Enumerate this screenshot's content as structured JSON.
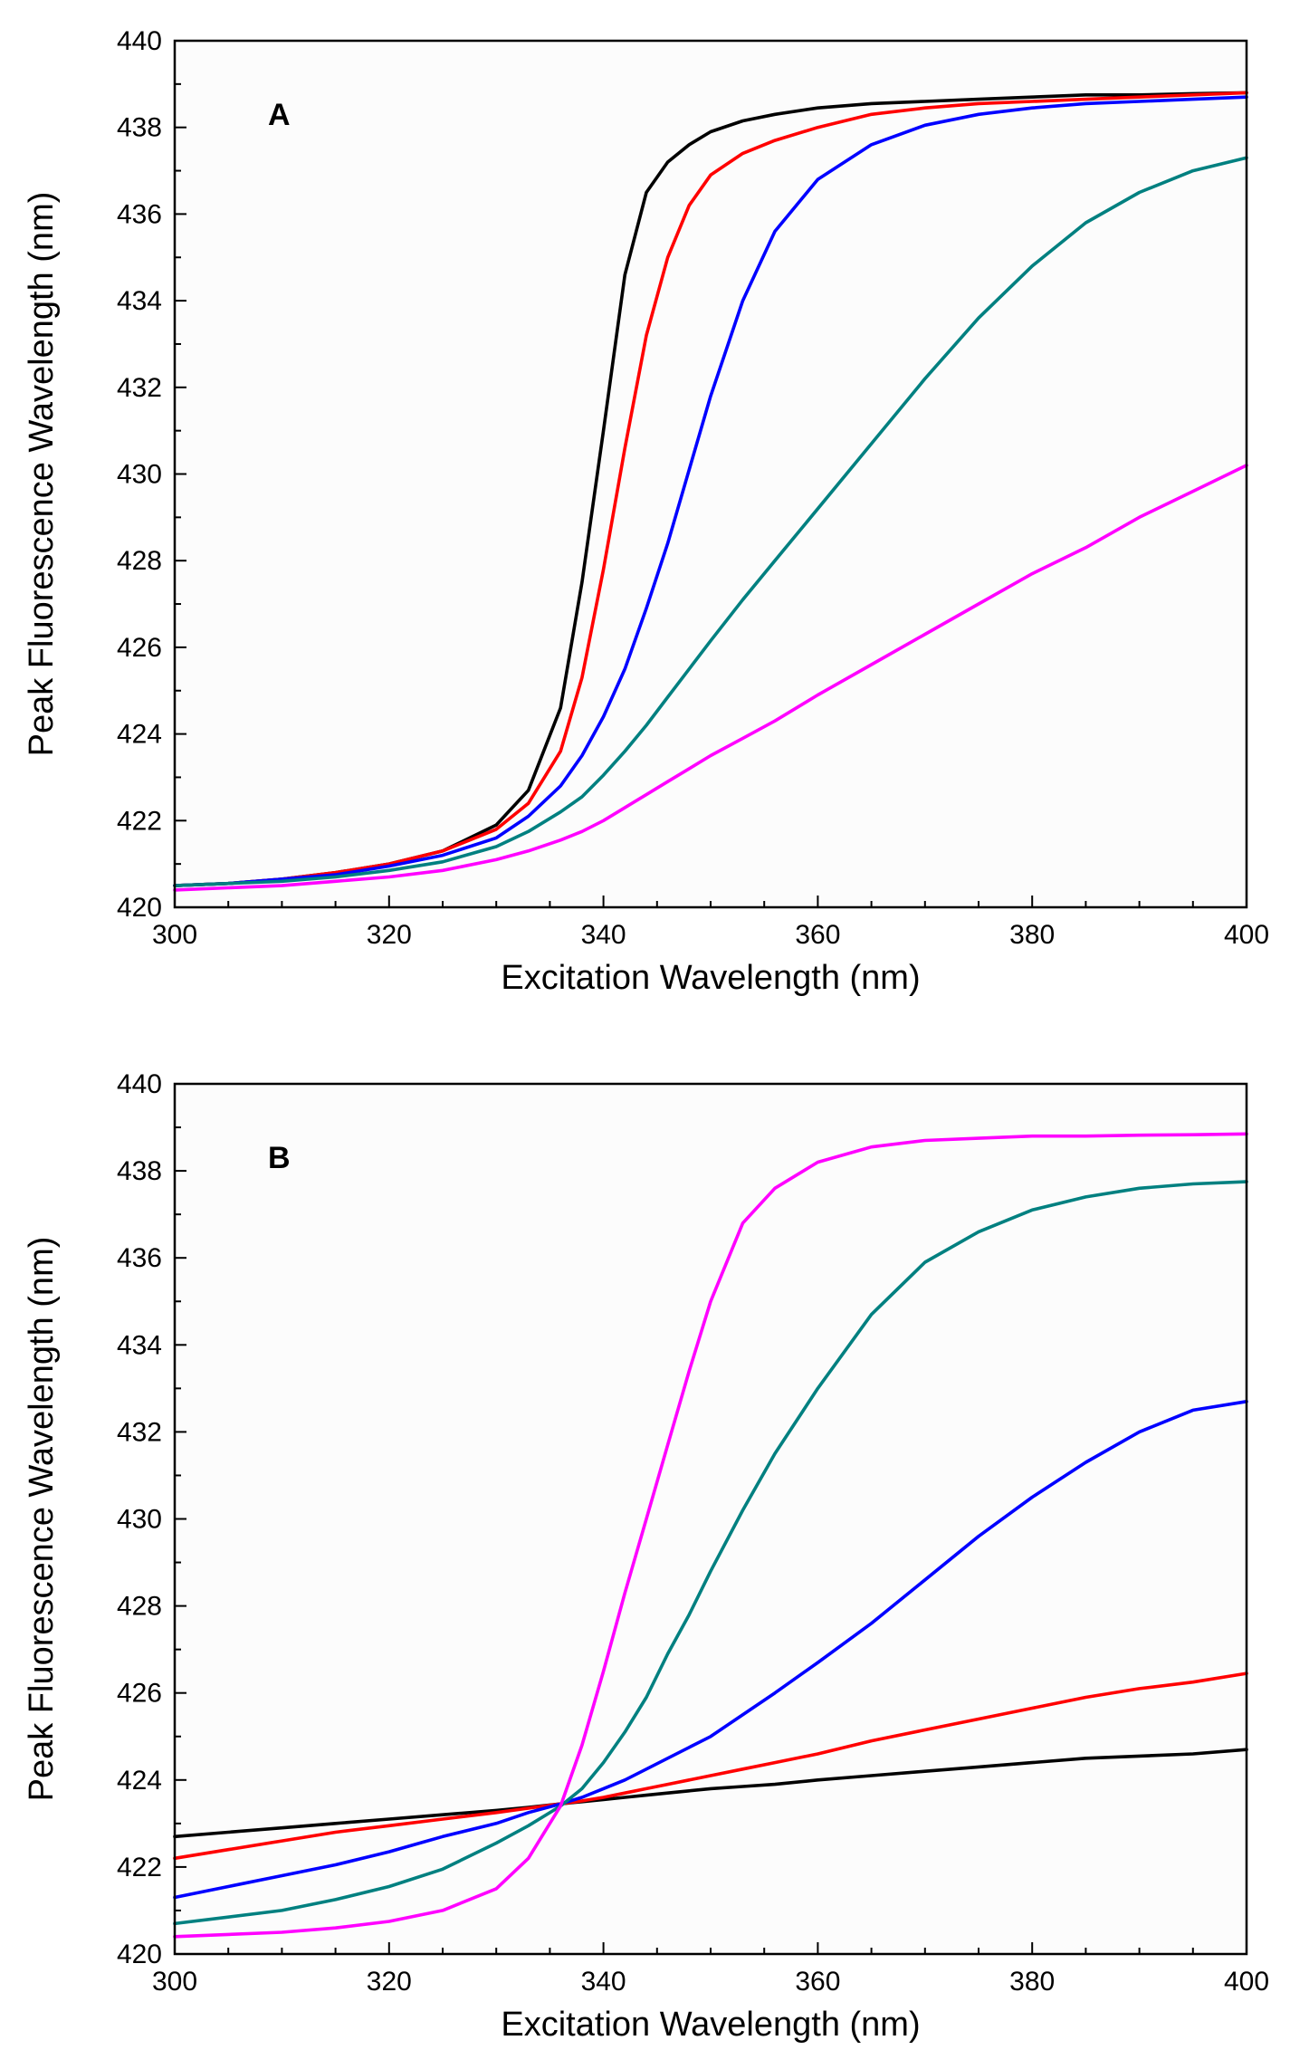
{
  "chart_data": [
    {
      "type": "line",
      "panel_label": "A",
      "xlabel": "Excitation Wavelength (nm)",
      "ylabel": "Peak Fluorescence Wavelength (nm)",
      "xlim": [
        300,
        400
      ],
      "ylim": [
        420,
        440
      ],
      "xticks": [
        300,
        320,
        340,
        360,
        380,
        400
      ],
      "yticks": [
        420,
        422,
        424,
        426,
        428,
        430,
        432,
        434,
        436,
        438,
        440
      ],
      "x": [
        300,
        305,
        310,
        315,
        320,
        325,
        330,
        333,
        336,
        338,
        340,
        342,
        344,
        346,
        348,
        350,
        353,
        356,
        360,
        365,
        370,
        375,
        380,
        385,
        390,
        395,
        400
      ],
      "series": [
        {
          "name": "black",
          "color": "#000000",
          "values": [
            420.5,
            420.55,
            420.65,
            420.8,
            421.0,
            421.3,
            421.9,
            422.7,
            424.6,
            427.5,
            431.0,
            434.6,
            436.5,
            437.2,
            437.6,
            437.9,
            438.15,
            438.3,
            438.45,
            438.55,
            438.6,
            438.65,
            438.7,
            438.75,
            438.75,
            438.78,
            438.8
          ]
        },
        {
          "name": "red",
          "color": "#ff0000",
          "values": [
            420.5,
            420.55,
            420.65,
            420.8,
            421.0,
            421.3,
            421.8,
            422.4,
            423.6,
            425.3,
            427.8,
            430.6,
            433.2,
            435.0,
            436.2,
            436.9,
            437.4,
            437.7,
            438.0,
            438.3,
            438.45,
            438.55,
            438.6,
            438.65,
            438.7,
            438.75,
            438.8
          ]
        },
        {
          "name": "blue",
          "color": "#0000ff",
          "values": [
            420.5,
            420.55,
            420.65,
            420.75,
            420.95,
            421.2,
            421.6,
            422.1,
            422.8,
            423.5,
            424.4,
            425.5,
            426.9,
            428.4,
            430.1,
            431.8,
            434.0,
            435.6,
            436.8,
            437.6,
            438.05,
            438.3,
            438.45,
            438.55,
            438.6,
            438.65,
            438.7
          ]
        },
        {
          "name": "teal",
          "color": "#008080",
          "values": [
            420.5,
            420.55,
            420.6,
            420.7,
            420.85,
            421.05,
            421.4,
            421.75,
            422.2,
            422.55,
            423.05,
            423.6,
            424.2,
            424.85,
            425.5,
            426.15,
            427.1,
            428.0,
            429.2,
            430.7,
            432.2,
            433.6,
            434.8,
            435.8,
            436.5,
            437.0,
            437.3
          ]
        },
        {
          "name": "magenta",
          "color": "#ff00ff",
          "values": [
            420.4,
            420.45,
            420.5,
            420.6,
            420.7,
            420.85,
            421.1,
            421.3,
            421.55,
            421.75,
            422.0,
            422.3,
            422.6,
            422.9,
            423.2,
            423.5,
            423.9,
            424.3,
            424.9,
            425.6,
            426.3,
            427.0,
            427.7,
            428.3,
            429.0,
            429.6,
            430.2
          ]
        }
      ]
    },
    {
      "type": "line",
      "panel_label": "B",
      "xlabel": "Excitation Wavelength (nm)",
      "ylabel": "Peak Fluorescence Wavelength (nm)",
      "xlim": [
        300,
        400
      ],
      "ylim": [
        420,
        440
      ],
      "xticks": [
        300,
        320,
        340,
        360,
        380,
        400
      ],
      "yticks": [
        420,
        422,
        424,
        426,
        428,
        430,
        432,
        434,
        436,
        438,
        440
      ],
      "x": [
        300,
        305,
        310,
        315,
        320,
        325,
        330,
        333,
        336,
        338,
        340,
        342,
        344,
        346,
        348,
        350,
        353,
        356,
        360,
        365,
        370,
        375,
        380,
        385,
        390,
        395,
        400
      ],
      "series": [
        {
          "name": "black",
          "color": "#000000",
          "values": [
            422.7,
            422.8,
            422.9,
            423.0,
            423.1,
            423.2,
            423.3,
            423.37,
            423.45,
            423.5,
            423.55,
            423.6,
            423.65,
            423.7,
            423.75,
            423.8,
            423.85,
            423.9,
            424.0,
            424.1,
            424.2,
            424.3,
            424.4,
            424.5,
            424.55,
            424.6,
            424.7
          ]
        },
        {
          "name": "red",
          "color": "#ff0000",
          "values": [
            422.2,
            422.4,
            422.6,
            422.8,
            422.95,
            423.1,
            423.25,
            423.35,
            423.45,
            423.52,
            423.6,
            423.7,
            423.8,
            423.9,
            424.0,
            424.1,
            424.25,
            424.4,
            424.6,
            424.9,
            425.15,
            425.4,
            425.65,
            425.9,
            426.1,
            426.25,
            426.45
          ]
        },
        {
          "name": "blue",
          "color": "#0000ff",
          "values": [
            421.3,
            421.55,
            421.8,
            422.05,
            422.35,
            422.7,
            423.0,
            423.25,
            423.45,
            423.6,
            423.8,
            424.0,
            424.25,
            424.5,
            424.75,
            425.0,
            425.5,
            426.0,
            426.7,
            427.6,
            428.6,
            429.6,
            430.5,
            431.3,
            432.0,
            432.5,
            432.7
          ]
        },
        {
          "name": "teal",
          "color": "#008080",
          "values": [
            420.7,
            420.85,
            421.0,
            421.25,
            421.55,
            421.95,
            422.55,
            422.95,
            423.4,
            423.8,
            424.4,
            425.1,
            425.9,
            426.9,
            427.8,
            428.8,
            430.2,
            431.5,
            433.0,
            434.7,
            435.9,
            436.6,
            437.1,
            437.4,
            437.6,
            437.7,
            437.75
          ]
        },
        {
          "name": "magenta",
          "color": "#ff00ff",
          "values": [
            420.4,
            420.45,
            420.5,
            420.6,
            420.75,
            421.0,
            421.5,
            422.2,
            423.4,
            424.8,
            426.5,
            428.3,
            430.0,
            431.7,
            433.4,
            435.0,
            436.8,
            437.6,
            438.2,
            438.55,
            438.7,
            438.75,
            438.8,
            438.8,
            438.82,
            438.83,
            438.85
          ]
        }
      ]
    }
  ]
}
